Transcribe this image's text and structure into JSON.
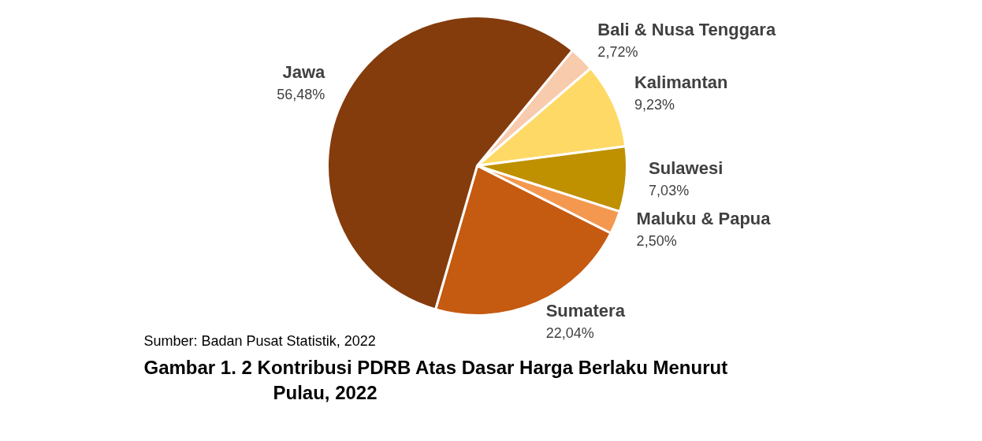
{
  "chart_data": {
    "type": "pie",
    "title": "Gambar 1. 2 Kontribusi PDRB Atas Dasar Harga Berlaku Menurut Pulau, 2022",
    "categories": [
      "Bali & Nusa Tenggara",
      "Kalimantan",
      "Sulawesi",
      "Maluku & Papua",
      "Sumatera",
      "Jawa"
    ],
    "values": [
      2.72,
      9.23,
      7.03,
      2.5,
      22.04,
      56.48
    ],
    "colors": [
      "#f8cbad",
      "#ffd966",
      "#bf9000",
      "#f4984f",
      "#c55a11",
      "#843c0c"
    ],
    "value_labels": [
      "2,72%",
      "9,23%",
      "7,03%",
      "2,50%",
      "22,04%",
      "56,48%"
    ],
    "annotations": [
      "Sumber: Badan Pusat Statistik, 2022"
    ]
  }
}
